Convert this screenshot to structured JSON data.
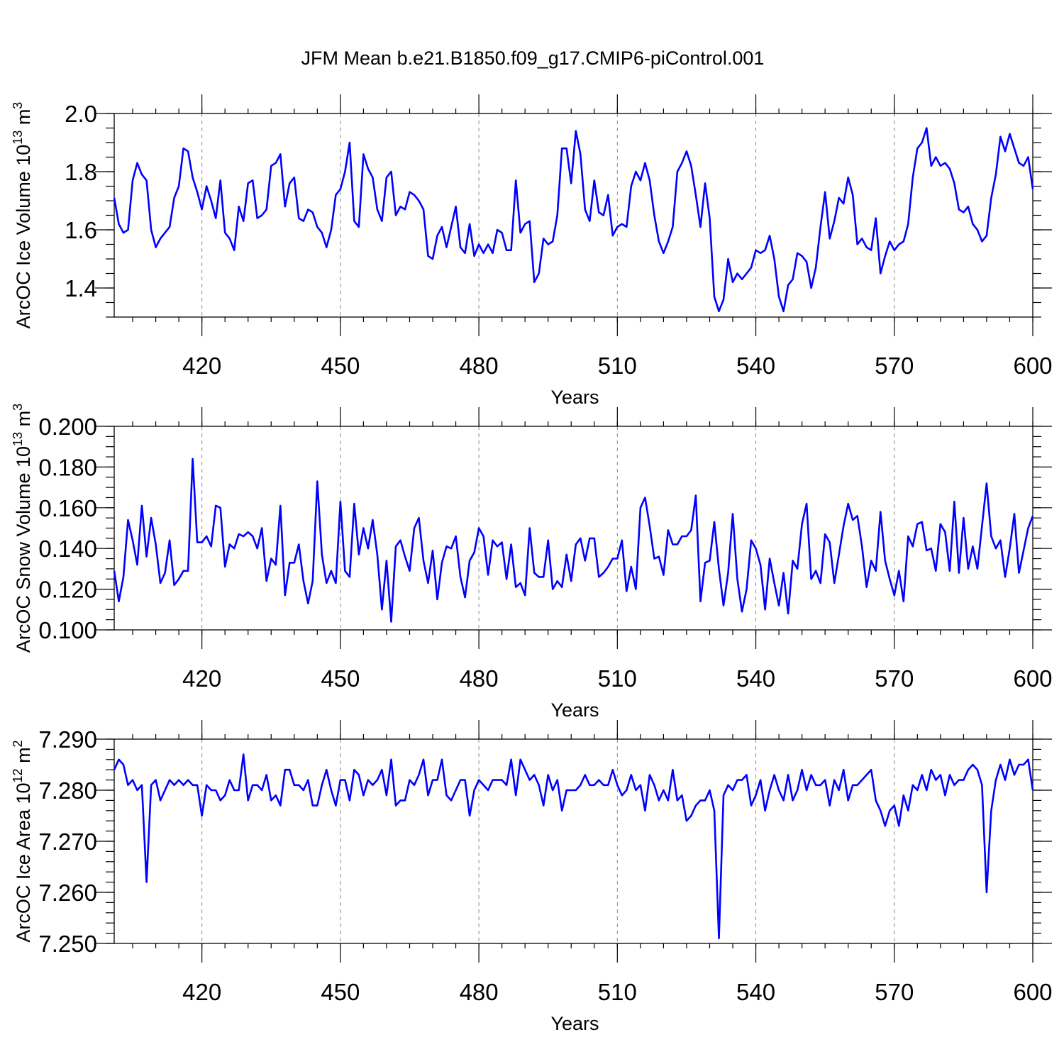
{
  "chart_data": {
    "type": "line",
    "title": "JFM Mean b.e21.B1850.f09_g17.CMIP6-piControl.001",
    "line_color": "#0000ff",
    "grid": "vertical dashed",
    "xlim": [
      401,
      600
    ],
    "x_start": 401,
    "x_step": 1,
    "x_ticks": [
      420,
      450,
      480,
      510,
      540,
      570,
      600
    ],
    "x_tick_labels": [
      "420",
      "450",
      "480",
      "510",
      "540",
      "570",
      "600"
    ],
    "panels": [
      {
        "xlabel": "Years",
        "ylabel": "ArcOC Ice Volume 10",
        "ylabel_sup1": "13",
        "ylabel_mid": " m",
        "ylabel_sup2": "3",
        "ylim": [
          1.3,
          2.0
        ],
        "y_ticks": [
          1.4,
          1.6,
          1.8,
          2.0
        ],
        "y_tick_labels": [
          "1.4",
          "1.6",
          "1.8",
          "2.0"
        ],
        "y_minor_step": 0.05,
        "values": [
          1.71,
          1.62,
          1.59,
          1.6,
          1.77,
          1.83,
          1.79,
          1.77,
          1.6,
          1.54,
          1.57,
          1.59,
          1.61,
          1.71,
          1.75,
          1.88,
          1.87,
          1.78,
          1.73,
          1.67,
          1.75,
          1.7,
          1.64,
          1.77,
          1.59,
          1.57,
          1.53,
          1.68,
          1.63,
          1.76,
          1.77,
          1.64,
          1.65,
          1.67,
          1.82,
          1.83,
          1.86,
          1.68,
          1.76,
          1.78,
          1.64,
          1.63,
          1.67,
          1.66,
          1.61,
          1.59,
          1.54,
          1.6,
          1.72,
          1.74,
          1.8,
          1.9,
          1.63,
          1.61,
          1.86,
          1.81,
          1.78,
          1.67,
          1.63,
          1.78,
          1.8,
          1.65,
          1.68,
          1.67,
          1.73,
          1.72,
          1.7,
          1.67,
          1.51,
          1.5,
          1.58,
          1.61,
          1.54,
          1.61,
          1.68,
          1.54,
          1.52,
          1.62,
          1.51,
          1.55,
          1.52,
          1.55,
          1.52,
          1.6,
          1.59,
          1.53,
          1.53,
          1.77,
          1.59,
          1.62,
          1.63,
          1.42,
          1.45,
          1.57,
          1.55,
          1.56,
          1.65,
          1.88,
          1.88,
          1.76,
          1.94,
          1.86,
          1.67,
          1.63,
          1.77,
          1.66,
          1.65,
          1.72,
          1.58,
          1.61,
          1.62,
          1.61,
          1.75,
          1.8,
          1.77,
          1.83,
          1.77,
          1.65,
          1.56,
          1.52,
          1.56,
          1.61,
          1.8,
          1.83,
          1.87,
          1.82,
          1.72,
          1.61,
          1.76,
          1.64,
          1.37,
          1.32,
          1.36,
          1.5,
          1.42,
          1.45,
          1.43,
          1.45,
          1.47,
          1.53,
          1.52,
          1.53,
          1.58,
          1.5,
          1.37,
          1.32,
          1.41,
          1.43,
          1.52,
          1.51,
          1.49,
          1.4,
          1.47,
          1.61,
          1.73,
          1.57,
          1.63,
          1.71,
          1.69,
          1.78,
          1.72,
          1.55,
          1.57,
          1.54,
          1.53,
          1.64,
          1.45,
          1.51,
          1.56,
          1.53,
          1.55,
          1.56,
          1.62,
          1.78,
          1.88,
          1.9,
          1.95,
          1.82,
          1.85,
          1.82,
          1.83,
          1.81,
          1.76,
          1.67,
          1.66,
          1.68,
          1.62,
          1.6,
          1.56,
          1.58,
          1.71,
          1.79,
          1.92,
          1.87,
          1.93,
          1.88,
          1.83,
          1.82,
          1.85,
          1.74
        ]
      },
      {
        "xlabel": "Years",
        "ylabel": "ArcOC Snow Volume 10",
        "ylabel_sup1": "13",
        "ylabel_mid": " m",
        "ylabel_sup2": "3",
        "ylim": [
          0.1,
          0.2
        ],
        "y_ticks": [
          0.1,
          0.12,
          0.14,
          0.16,
          0.18,
          0.2
        ],
        "y_tick_labels": [
          "0.100",
          "0.120",
          "0.140",
          "0.160",
          "0.180",
          "0.200"
        ],
        "y_minor_step": 0.005,
        "values": [
          0.129,
          0.114,
          0.126,
          0.154,
          0.144,
          0.132,
          0.161,
          0.136,
          0.155,
          0.142,
          0.123,
          0.128,
          0.144,
          0.122,
          0.125,
          0.129,
          0.129,
          0.184,
          0.143,
          0.143,
          0.146,
          0.141,
          0.161,
          0.16,
          0.131,
          0.142,
          0.14,
          0.147,
          0.146,
          0.148,
          0.146,
          0.14,
          0.15,
          0.124,
          0.135,
          0.132,
          0.161,
          0.117,
          0.133,
          0.133,
          0.142,
          0.124,
          0.113,
          0.124,
          0.173,
          0.137,
          0.123,
          0.129,
          0.123,
          0.163,
          0.129,
          0.126,
          0.162,
          0.137,
          0.15,
          0.14,
          0.154,
          0.137,
          0.11,
          0.134,
          0.104,
          0.141,
          0.144,
          0.136,
          0.129,
          0.15,
          0.155,
          0.134,
          0.123,
          0.139,
          0.115,
          0.133,
          0.141,
          0.14,
          0.146,
          0.126,
          0.116,
          0.134,
          0.138,
          0.15,
          0.146,
          0.127,
          0.144,
          0.141,
          0.143,
          0.125,
          0.142,
          0.121,
          0.123,
          0.117,
          0.15,
          0.128,
          0.126,
          0.126,
          0.144,
          0.12,
          0.124,
          0.121,
          0.137,
          0.124,
          0.142,
          0.145,
          0.134,
          0.145,
          0.145,
          0.126,
          0.128,
          0.131,
          0.135,
          0.135,
          0.144,
          0.119,
          0.131,
          0.12,
          0.16,
          0.165,
          0.151,
          0.135,
          0.136,
          0.127,
          0.149,
          0.142,
          0.142,
          0.146,
          0.146,
          0.149,
          0.166,
          0.114,
          0.133,
          0.134,
          0.153,
          0.13,
          0.112,
          0.128,
          0.157,
          0.125,
          0.109,
          0.12,
          0.144,
          0.14,
          0.132,
          0.11,
          0.135,
          0.123,
          0.112,
          0.128,
          0.108,
          0.134,
          0.13,
          0.152,
          0.162,
          0.125,
          0.129,
          0.123,
          0.147,
          0.143,
          0.123,
          0.137,
          0.151,
          0.162,
          0.154,
          0.156,
          0.141,
          0.121,
          0.134,
          0.129,
          0.158,
          0.134,
          0.125,
          0.117,
          0.129,
          0.114,
          0.146,
          0.141,
          0.152,
          0.153,
          0.139,
          0.14,
          0.129,
          0.152,
          0.148,
          0.129,
          0.163,
          0.128,
          0.155,
          0.13,
          0.141,
          0.13,
          0.151,
          0.172,
          0.146,
          0.14,
          0.144,
          0.126,
          0.14,
          0.157,
          0.128,
          0.139,
          0.15,
          0.156
        ]
      },
      {
        "xlabel": "Years",
        "ylabel": "ArcOC Ice Area 10",
        "ylabel_sup1": "12",
        "ylabel_mid": " m",
        "ylabel_sup2": "2",
        "ylim": [
          7.25,
          7.29
        ],
        "y_ticks": [
          7.25,
          7.26,
          7.27,
          7.28,
          7.29
        ],
        "y_tick_labels": [
          "7.250",
          "7.260",
          "7.270",
          "7.280",
          "7.290"
        ],
        "y_minor_step": 0.002,
        "values": [
          7.284,
          7.286,
          7.285,
          7.281,
          7.282,
          7.28,
          7.281,
          7.262,
          7.281,
          7.282,
          7.278,
          7.28,
          7.282,
          7.281,
          7.282,
          7.281,
          7.282,
          7.281,
          7.281,
          7.275,
          7.281,
          7.28,
          7.28,
          7.278,
          7.279,
          7.282,
          7.28,
          7.28,
          7.287,
          7.278,
          7.281,
          7.281,
          7.28,
          7.283,
          7.278,
          7.279,
          7.277,
          7.284,
          7.284,
          7.281,
          7.281,
          7.28,
          7.282,
          7.277,
          7.277,
          7.281,
          7.284,
          7.28,
          7.277,
          7.282,
          7.282,
          7.278,
          7.284,
          7.283,
          7.279,
          7.282,
          7.281,
          7.282,
          7.284,
          7.279,
          7.286,
          7.277,
          7.278,
          7.278,
          7.282,
          7.281,
          7.283,
          7.286,
          7.279,
          7.282,
          7.282,
          7.286,
          7.279,
          7.278,
          7.28,
          7.282,
          7.282,
          7.275,
          7.28,
          7.282,
          7.281,
          7.28,
          7.282,
          7.282,
          7.282,
          7.281,
          7.286,
          7.279,
          7.286,
          7.284,
          7.282,
          7.283,
          7.281,
          7.277,
          7.283,
          7.28,
          7.282,
          7.276,
          7.28,
          7.28,
          7.28,
          7.281,
          7.283,
          7.281,
          7.281,
          7.282,
          7.281,
          7.281,
          7.284,
          7.281,
          7.279,
          7.28,
          7.283,
          7.28,
          7.281,
          7.276,
          7.283,
          7.281,
          7.278,
          7.28,
          7.278,
          7.284,
          7.278,
          7.279,
          7.274,
          7.275,
          7.277,
          7.278,
          7.278,
          7.28,
          7.276,
          7.251,
          7.279,
          7.281,
          7.28,
          7.282,
          7.282,
          7.283,
          7.277,
          7.279,
          7.282,
          7.276,
          7.28,
          7.283,
          7.28,
          7.278,
          7.283,
          7.278,
          7.28,
          7.284,
          7.28,
          7.283,
          7.281,
          7.281,
          7.282,
          7.277,
          7.282,
          7.28,
          7.284,
          7.278,
          7.281,
          7.281,
          7.282,
          7.283,
          7.284,
          7.278,
          7.276,
          7.273,
          7.276,
          7.277,
          7.273,
          7.279,
          7.276,
          7.281,
          7.28,
          7.283,
          7.28,
          7.284,
          7.282,
          7.283,
          7.279,
          7.283,
          7.281,
          7.282,
          7.282,
          7.284,
          7.285,
          7.284,
          7.281,
          7.26,
          7.276,
          7.282,
          7.285,
          7.282,
          7.286,
          7.283,
          7.285,
          7.285,
          7.286,
          7.28
        ]
      }
    ]
  }
}
